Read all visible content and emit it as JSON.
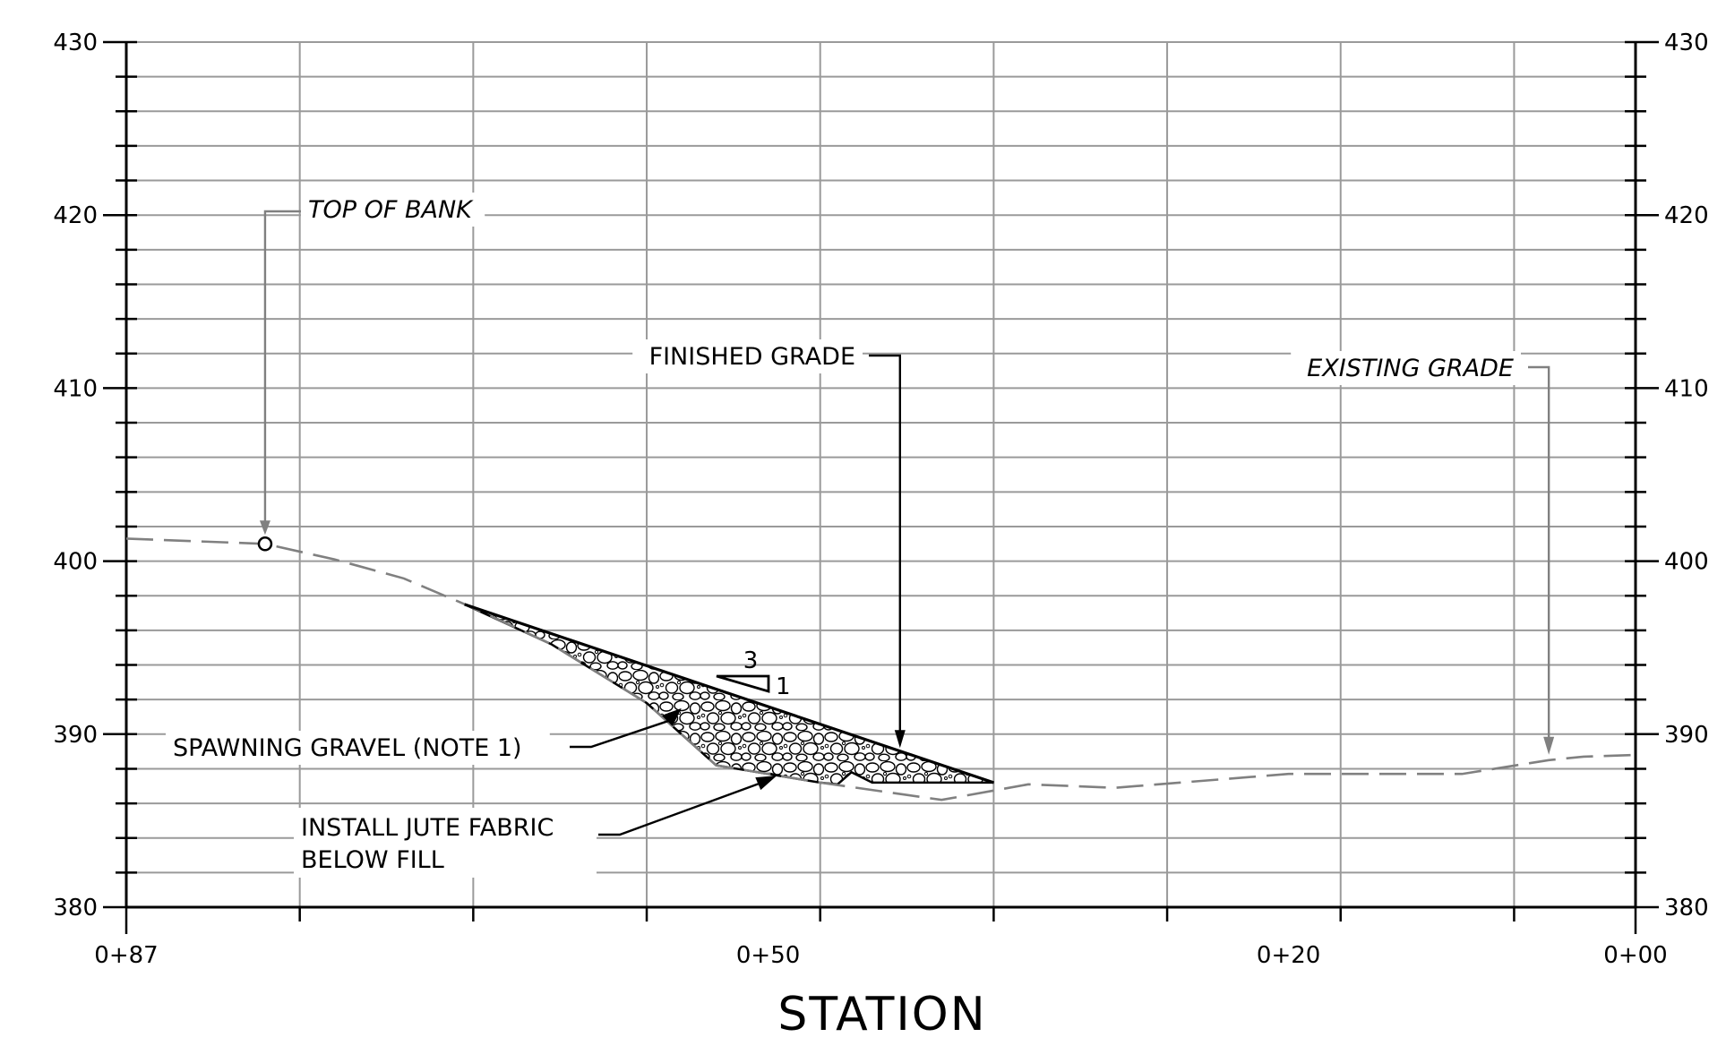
{
  "chart_data": {
    "type": "line",
    "xlabel": "STATION",
    "ylabel": "",
    "x_tick_labels": [
      "0+87",
      "0+50",
      "0+20",
      "0+00"
    ],
    "x_tick_values": [
      87,
      50,
      20,
      0
    ],
    "x_reversed": true,
    "xlim": [
      87,
      0
    ],
    "ylim": [
      380,
      430
    ],
    "y_tick_labels": [
      "380",
      "390",
      "400",
      "410",
      "420",
      "430"
    ],
    "grid": true,
    "series": [
      {
        "name": "EXISTING GRADE",
        "style": "dashed",
        "color": "#808080",
        "points": [
          [
            87,
            401.3
          ],
          [
            79,
            401.0
          ],
          [
            75,
            400.1
          ],
          [
            71,
            399.0
          ],
          [
            67,
            397.3
          ],
          [
            62.5,
            395.2
          ],
          [
            57,
            391.8
          ],
          [
            53,
            388.2
          ],
          [
            47,
            387.2
          ],
          [
            40,
            386.2
          ],
          [
            35,
            387.1
          ],
          [
            30,
            386.9
          ],
          [
            20,
            387.7
          ],
          [
            10,
            387.7
          ],
          [
            5,
            388.5
          ],
          [
            3,
            388.7
          ],
          [
            0,
            388.8
          ]
        ]
      },
      {
        "name": "FINISHED GRADE",
        "style": "solid",
        "color": "#000000",
        "points": [
          [
            67.5,
            397.5
          ],
          [
            37,
            387.2
          ]
        ]
      }
    ],
    "fill_region": {
      "name": "SPAWNING GRAVEL (NOTE 1)",
      "polygon": [
        [
          67.5,
          397.5
        ],
        [
          62.5,
          395.2
        ],
        [
          57,
          391.8
        ],
        [
          53,
          388.2
        ],
        [
          47,
          387.2
        ],
        [
          46,
          387.1
        ],
        [
          45.2,
          387.8
        ],
        [
          44,
          387.2
        ],
        [
          37,
          387.2
        ]
      ]
    },
    "annotations": [
      {
        "text": "TOP OF BANK",
        "italic": true,
        "x": 79,
        "y": 401.0
      },
      {
        "text": "FINISHED GRADE",
        "italic": false,
        "x": 42.4,
        "y": 389.1
      },
      {
        "text": "EXISTING GRADE",
        "italic": true,
        "x": 5,
        "y": 388.5
      },
      {
        "text": "SPAWNING GRAVEL (NOTE 1)",
        "italic": false,
        "x": 55,
        "y": 391.5
      },
      {
        "text_lines": [
          "INSTALL JUTE FABRIC",
          "BELOW FILL"
        ],
        "italic": false,
        "x": 49.5,
        "y": 387.6
      }
    ],
    "slope_indicator": {
      "run": "3",
      "rise": "1"
    }
  }
}
